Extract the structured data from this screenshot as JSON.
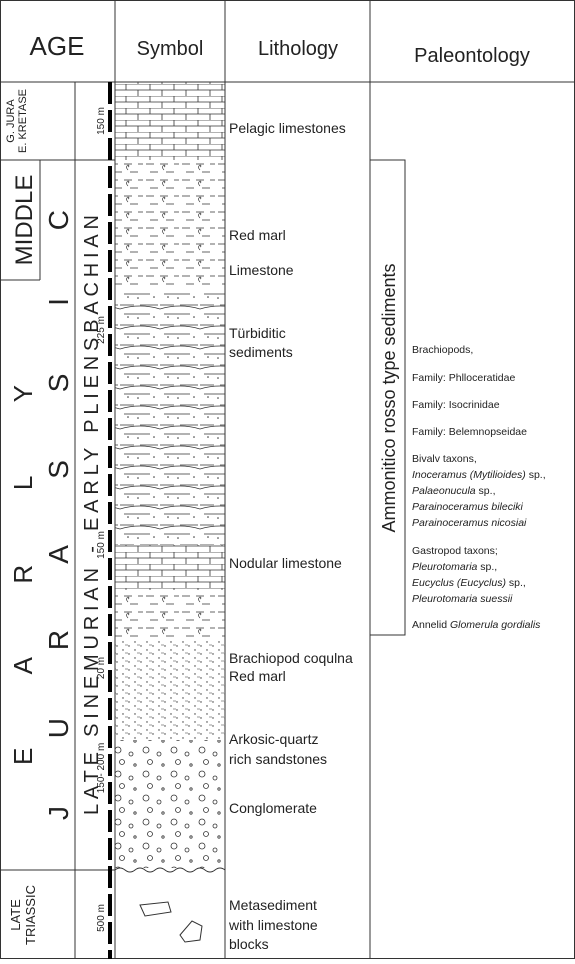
{
  "header": {
    "age": "AGE",
    "symbol": "Symbol",
    "lithology": "Lithology",
    "paleontology": "Paleontology"
  },
  "age": {
    "epochs": [
      [
        "G. JURA",
        "E. KRETASE"
      ],
      [
        "MIDDLE"
      ],
      [
        "E A R L Y"
      ],
      [
        "LATE",
        "TRIASSIC"
      ]
    ],
    "period": "J U R A S S I C",
    "stage": "LATE SINEMURIAN - EARLY PLIENSBACHIAN"
  },
  "thickness": [
    "150 m",
    "225 m",
    "150 m",
    "20 m",
    "150- 200 m",
    "500 m"
  ],
  "lithology": [
    "Pelagic limestones",
    "Red marl",
    "Limestone",
    "Türbiditic",
    "sediments",
    "Nodular limestone",
    "Brachiopod coqulna",
    "Red marl",
    "Arkosic-quartz",
    "rich sandstones",
    "Conglomerate",
    "Metasediment",
    "with limestone",
    "blocks"
  ],
  "paleontology": {
    "formation": "Ammonitico rosso type sediments",
    "lines": [
      [
        {
          "text": "Brachiopods,"
        }
      ],
      [
        {
          "text": "Family: Phlloceratidae"
        }
      ],
      [
        {
          "text": "Family: Isocrinidae"
        }
      ],
      [
        {
          "text": "Family: Belemnopseidae"
        }
      ],
      [
        {
          "text": "Bivalv taxons,"
        }
      ],
      [
        {
          "text": "Inoceramus (Mytilioides)",
          "italic": true
        },
        {
          "text": " sp.,"
        }
      ],
      [
        {
          "text": "Palaeonucula",
          "italic": true
        },
        {
          "text": " sp.,"
        }
      ],
      [
        {
          "text": "Parainoceramus bileciki",
          "italic": true
        }
      ],
      [
        {
          "text": "Parainoceramus nicosiai",
          "italic": true
        }
      ],
      [
        {
          "text": "Gastropod taxons;"
        }
      ],
      [
        {
          "text": "Pleurotomaria",
          "italic": true
        },
        {
          "text": " sp.,"
        }
      ],
      [
        {
          "text": "Eucyclus (Eucyclus)",
          "italic": true
        },
        {
          "text": " sp.,"
        }
      ],
      [
        {
          "text": "Pleurotomaria suessii",
          "italic": true
        }
      ],
      [
        {
          "text": "Annelid "
        },
        {
          "text": "Glomerula gordialis",
          "italic": true
        }
      ]
    ]
  }
}
